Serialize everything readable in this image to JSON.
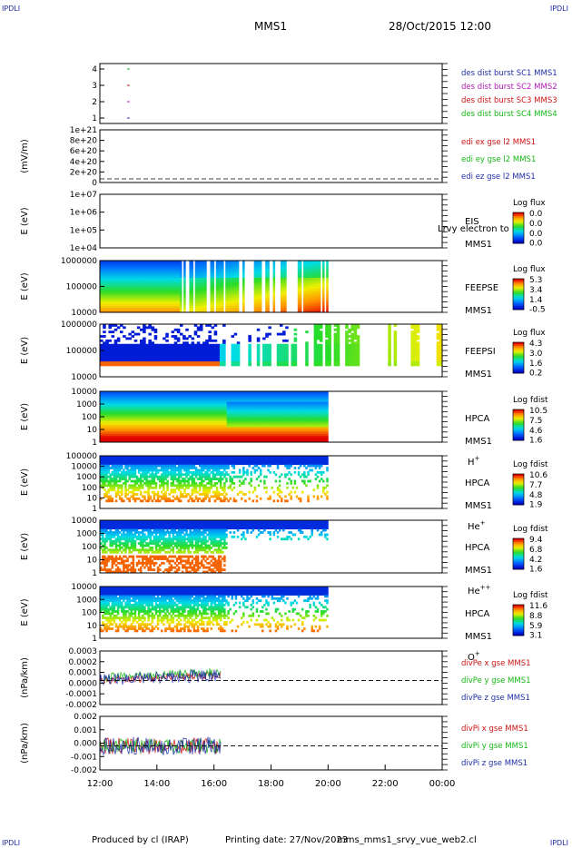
{
  "header": {
    "corner_tl": "IPDLI",
    "corner_tr": "IPDLI",
    "corner_bl": "IPDLI",
    "corner_br": "IPDLI",
    "title": "MMS1",
    "date": "28/Oct/2015 12:00"
  },
  "footer": {
    "produced": "Produced by cl (IRAP)",
    "printed": "Printing date: 27/Nov/2023",
    "file": "mms_mms1_srvy_vue_web2.cl"
  },
  "colors": {
    "frame": "#000000",
    "mms1": "#1f2ea6",
    "mms2": "#b21ab8",
    "mms3": "#cc1414",
    "mms4": "#16b816",
    "x": "#cc1414",
    "y": "#16b816",
    "z": "#1f2ea6"
  },
  "chart_data": [
    {
      "id": "burst",
      "type": "scatter",
      "yticks": [
        "4",
        "3",
        "2",
        "1"
      ],
      "legend": [
        {
          "label": "des dist burst SC1 MMS1",
          "color": "mms1"
        },
        {
          "label": "des dist burst SC2 MMS2",
          "color": "mms2"
        },
        {
          "label": "des dist burst SC3 MMS3",
          "color": "mms3"
        },
        {
          "label": "des dist burst SC4 MMS4",
          "color": "mms4"
        }
      ],
      "points": [
        {
          "x": 13.0,
          "y": 4,
          "series": "mms4"
        },
        {
          "x": 13.0,
          "y": 3,
          "series": "mms3"
        },
        {
          "x": 13.0,
          "y": 2,
          "series": "mms2"
        },
        {
          "x": 13.0,
          "y": 1,
          "series": "mms1"
        }
      ]
    },
    {
      "id": "edi",
      "type": "line",
      "ylabel": "(mV/m)",
      "yticks": [
        "1e+21",
        "8e+20",
        "6e+20",
        "4e+20",
        "2e+20",
        "0"
      ],
      "legend": [
        {
          "label": "edi ex gse l2 MMS1",
          "color": "x"
        },
        {
          "label": "edi ey gse l2 MMS1",
          "color": "y"
        },
        {
          "label": "edi ez gse l2 MMS1",
          "color": "z"
        }
      ],
      "zero_line": true
    },
    {
      "id": "eis",
      "type": "heatmap",
      "ylabel": "E (eV)",
      "yticks": [
        "1e+07",
        "1e+06",
        "1e+05",
        "1e+04"
      ],
      "instrument": [
        "EIS",
        "MMS1"
      ],
      "overlay": "Lrvy electron to",
      "cbar_title": "Log flux",
      "cbar_ticks": [
        "0.0",
        "0.0",
        "0.0",
        "0.0"
      ]
    },
    {
      "id": "feepse",
      "type": "heatmap",
      "ylabel": "E (eV)",
      "yticks": [
        "1000000",
        "100000",
        "10000"
      ],
      "instrument": [
        "FEEPSE",
        "MMS1"
      ],
      "cbar_title": "Log flux",
      "cbar_ticks": [
        "5.3",
        "3.4",
        "1.4",
        "-0.5"
      ],
      "data_x_range": [
        12.0,
        20.0
      ]
    },
    {
      "id": "feepsi",
      "type": "heatmap",
      "ylabel": "E (eV)",
      "yticks": [
        "1000000",
        "100000",
        "10000"
      ],
      "instrument": [
        "FEEPSI",
        "MMS1"
      ],
      "cbar_title": "Log flux",
      "cbar_ticks": [
        "4.3",
        "3.0",
        "1.6",
        "0.2"
      ],
      "data_x_range": [
        12.0,
        24.0
      ]
    },
    {
      "id": "hpca_h",
      "type": "heatmap",
      "ylabel": "E (eV)",
      "yticks": [
        "10000",
        "1000",
        "100",
        "10",
        "1"
      ],
      "instrument": [
        "HPCA",
        "MMS1"
      ],
      "species": "H",
      "charge": "+",
      "cbar_title": "Log fdist",
      "cbar_ticks": [
        "10.5",
        "7.5",
        "4.6",
        "1.6"
      ],
      "data_x_range": [
        12.0,
        20.0
      ]
    },
    {
      "id": "hpca_he",
      "type": "heatmap",
      "ylabel": "E (eV)",
      "yticks": [
        "100000",
        "10000",
        "1000",
        "100",
        "10",
        "1"
      ],
      "instrument": [
        "HPCA",
        "MMS1"
      ],
      "species": "He",
      "charge": "+",
      "cbar_title": "Log fdist",
      "cbar_ticks": [
        "10.6",
        "7.7",
        "4.8",
        "1.9"
      ],
      "data_x_range": [
        12.0,
        20.0
      ]
    },
    {
      "id": "hpca_he2",
      "type": "heatmap",
      "ylabel": "E (eV)",
      "yticks": [
        "10000",
        "1000",
        "100",
        "10",
        "1"
      ],
      "instrument": [
        "HPCA",
        "MMS1"
      ],
      "species": "He",
      "charge": "++",
      "cbar_title": "Log fdist",
      "cbar_ticks": [
        "9.4",
        "6.8",
        "4.2",
        "1.6"
      ],
      "data_x_range": [
        12.0,
        20.0
      ]
    },
    {
      "id": "hpca_o",
      "type": "heatmap",
      "ylabel": "E (eV)",
      "yticks": [
        "10000",
        "1000",
        "100",
        "10",
        "1"
      ],
      "instrument": [
        "HPCA",
        "MMS1"
      ],
      "species": "O",
      "charge": "+",
      "cbar_title": "Log fdist",
      "cbar_ticks": [
        "11.6",
        "8.8",
        "5.9",
        "3.1"
      ],
      "data_x_range": [
        12.0,
        20.0
      ]
    },
    {
      "id": "divpe",
      "type": "line",
      "ylabel": "(nPa/km)",
      "yticks": [
        "0.0003",
        "0.0002",
        "0.0001",
        "0.0000",
        "-0.0001",
        "-0.0002"
      ],
      "ylim": [
        -0.00025,
        0.0003
      ],
      "legend": [
        {
          "label": "divPe x gse MMS1",
          "color": "x"
        },
        {
          "label": "divPe y gse MMS1",
          "color": "y"
        },
        {
          "label": "divPe z gse MMS1",
          "color": "z"
        }
      ],
      "zero_line": true,
      "data_x_range": [
        12.0,
        16.25
      ]
    },
    {
      "id": "divpi",
      "type": "line",
      "ylabel": "(nPa/km)",
      "yticks": [
        "0.002",
        "0.001",
        "0.000",
        "-0.001",
        "-0.002"
      ],
      "ylim": [
        -0.0025,
        0.0022
      ],
      "legend": [
        {
          "label": "divPi x gse MMS1",
          "color": "x"
        },
        {
          "label": "divPi y gse MMS1",
          "color": "y"
        },
        {
          "label": "divPi z gse MMS1",
          "color": "z"
        }
      ],
      "zero_line": true,
      "data_x_range": [
        12.0,
        16.25
      ]
    }
  ],
  "xaxis": {
    "range": [
      12.0,
      24.0
    ],
    "ticks": [
      {
        "value": 12,
        "label": "12:00"
      },
      {
        "value": 14,
        "label": "14:00"
      },
      {
        "value": 16,
        "label": "16:00"
      },
      {
        "value": 18,
        "label": "18:00"
      },
      {
        "value": 20,
        "label": "20:00"
      },
      {
        "value": 22,
        "label": "22:00"
      },
      {
        "value": 24,
        "label": "00:00"
      }
    ]
  }
}
